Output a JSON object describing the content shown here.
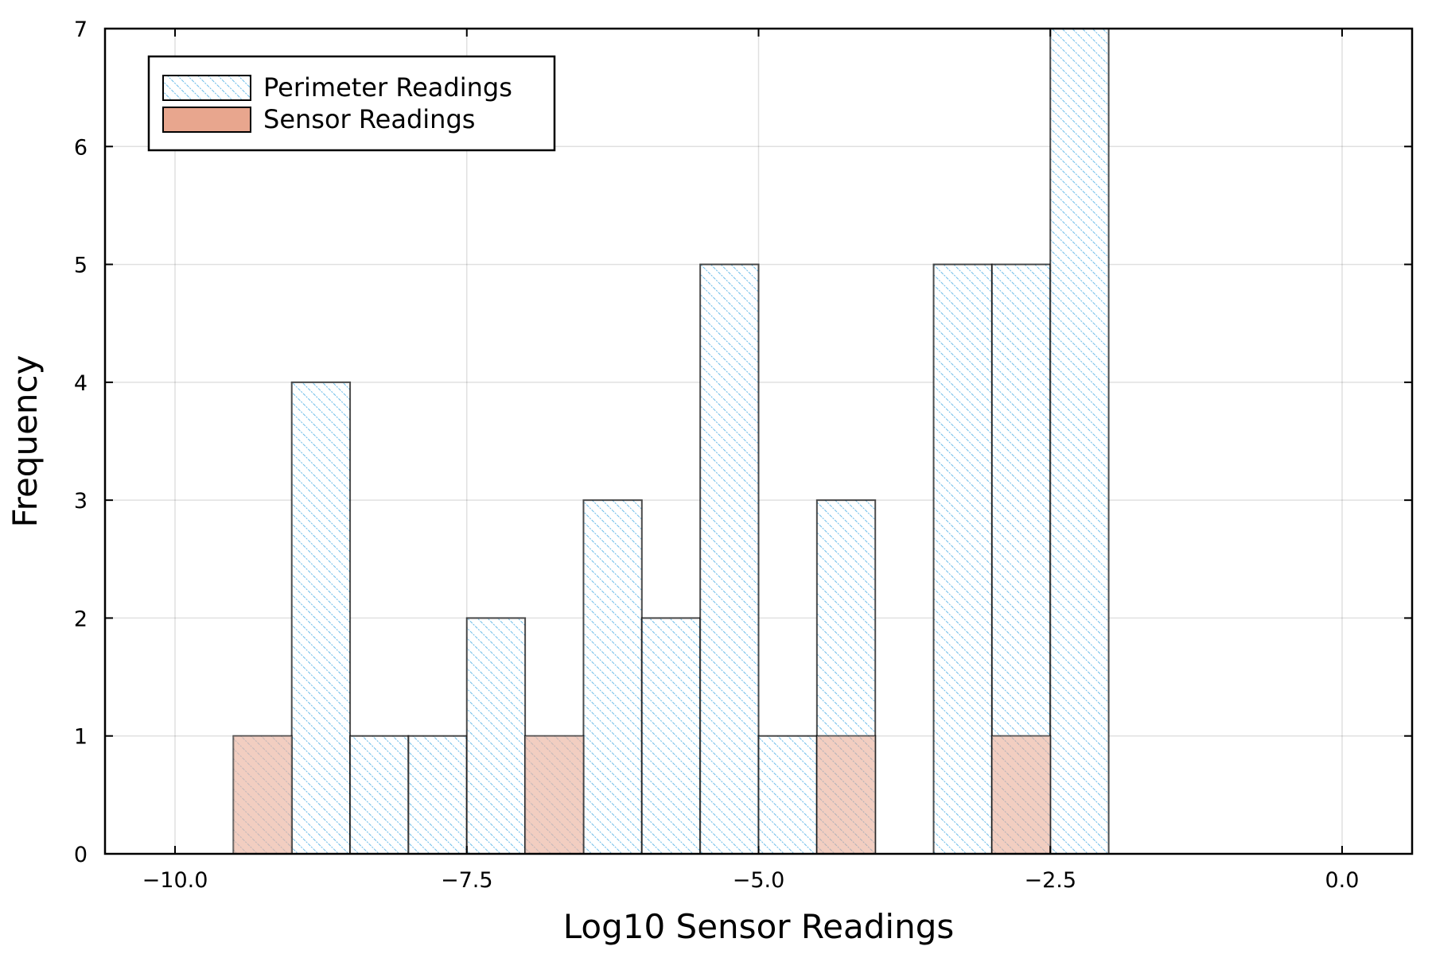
{
  "chart_data": {
    "type": "bar",
    "title": "",
    "xlabel": "Log10 Sensor Readings",
    "ylabel": "Frequency",
    "xlim": [
      -10.6,
      0.6
    ],
    "ylim": [
      0,
      7
    ],
    "bin_width": 0.5,
    "xticks": [
      -10.0,
      -7.5,
      -5.0,
      -2.5,
      0.0
    ],
    "xtick_labels": [
      "−10.0",
      "−7.5",
      "−5.0",
      "−2.5",
      "0.0"
    ],
    "yticks": [
      0,
      1,
      2,
      3,
      4,
      5,
      6,
      7
    ],
    "ytick_labels": [
      "0",
      "1",
      "2",
      "3",
      "4",
      "5",
      "6",
      "7"
    ],
    "grid": true,
    "legend_position": "top-left",
    "series": [
      {
        "name": "Perimeter Readings",
        "style": "hatched",
        "color": "#5ab4e6",
        "bins": [
          {
            "x0": -9.0,
            "x1": -8.5,
            "count": 4
          },
          {
            "x0": -8.5,
            "x1": -8.0,
            "count": 1
          },
          {
            "x0": -8.0,
            "x1": -7.5,
            "count": 1
          },
          {
            "x0": -7.5,
            "x1": -7.0,
            "count": 2
          },
          {
            "x0": -6.5,
            "x1": -6.0,
            "count": 3
          },
          {
            "x0": -6.0,
            "x1": -5.5,
            "count": 2
          },
          {
            "x0": -5.5,
            "x1": -5.0,
            "count": 5
          },
          {
            "x0": -5.0,
            "x1": -4.5,
            "count": 1
          },
          {
            "x0": -4.5,
            "x1": -4.0,
            "count": 3
          },
          {
            "x0": -3.5,
            "x1": -3.0,
            "count": 5
          },
          {
            "x0": -3.0,
            "x1": -2.5,
            "count": 5
          },
          {
            "x0": -2.5,
            "x1": -2.0,
            "count": 7
          }
        ]
      },
      {
        "name": "Sensor Readings",
        "style": "solid",
        "color": "#e8a68e",
        "bins": [
          {
            "x0": -9.5,
            "x1": -9.0,
            "count": 1
          },
          {
            "x0": -7.0,
            "x1": -6.5,
            "count": 1
          },
          {
            "x0": -4.5,
            "x1": -4.0,
            "count": 1
          },
          {
            "x0": -3.0,
            "x1": -2.5,
            "count": 1
          }
        ]
      }
    ]
  }
}
